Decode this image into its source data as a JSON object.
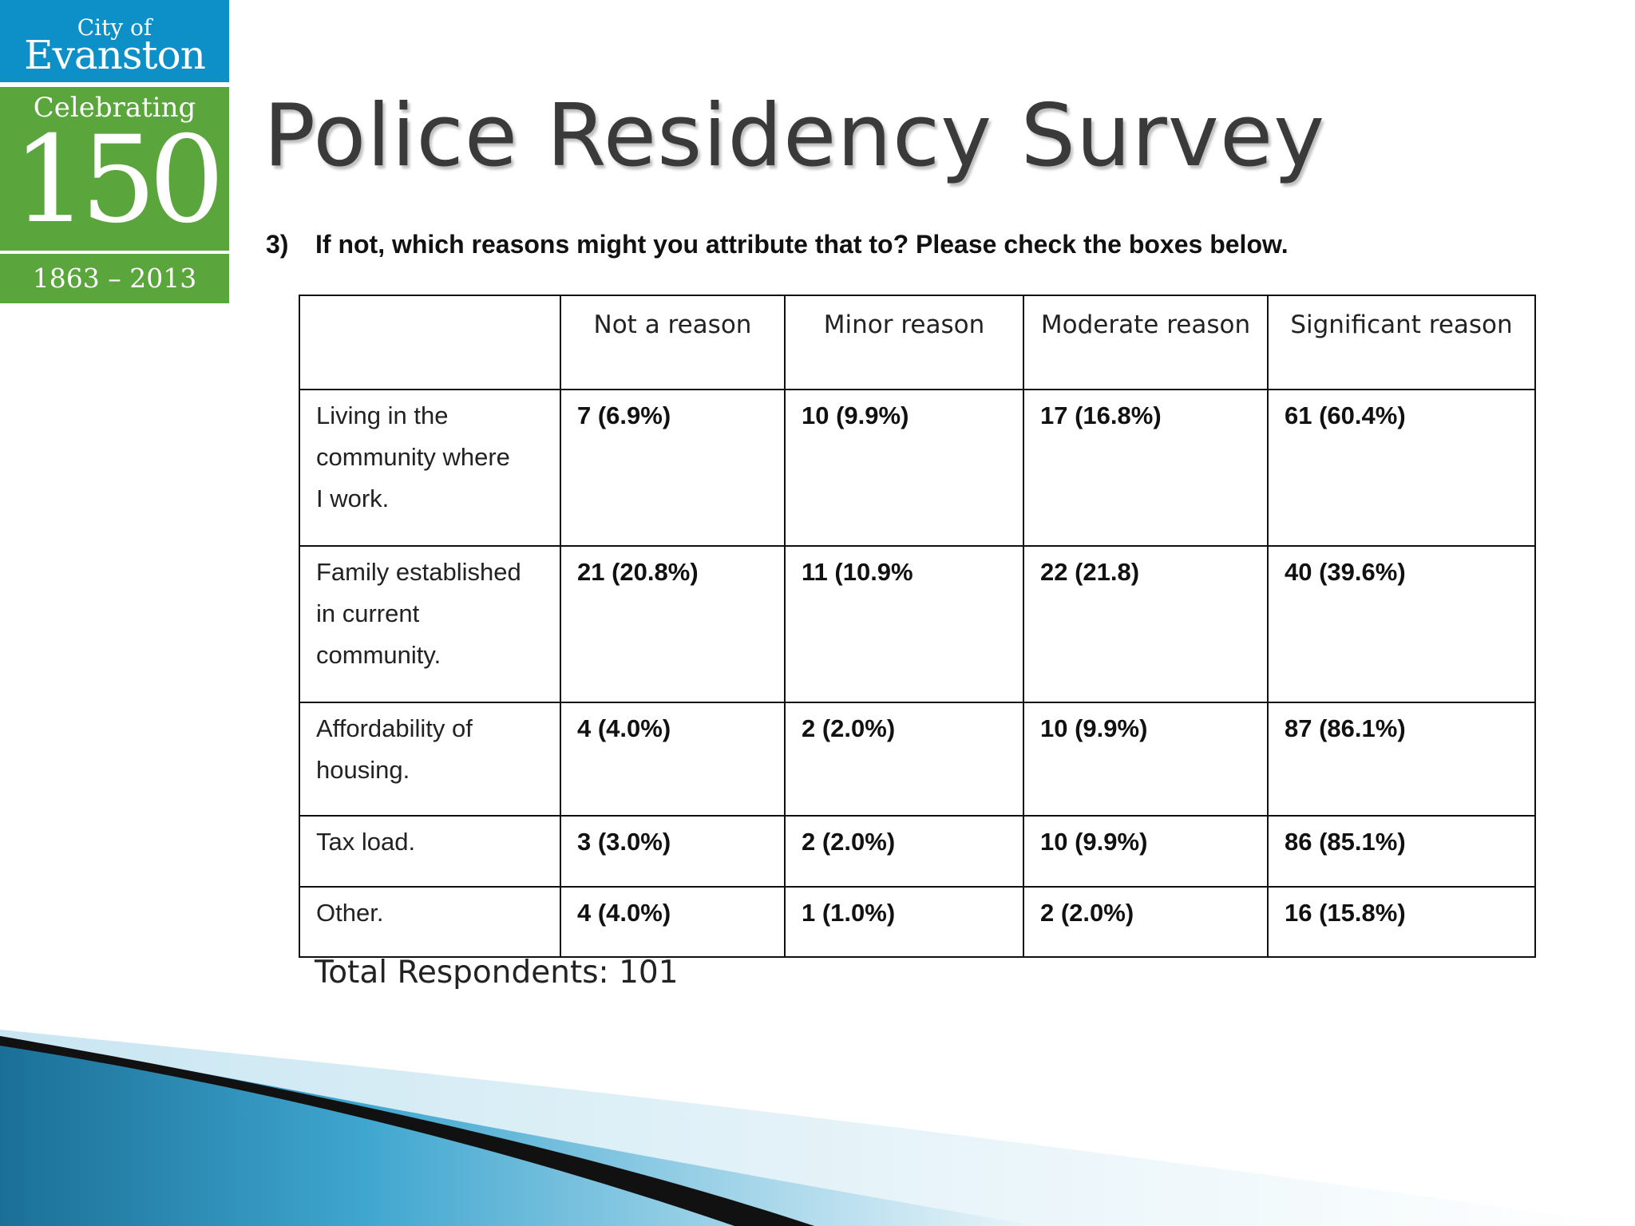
{
  "logo": {
    "city_of": "City of",
    "city_name": "Evanston",
    "celebrating": "Celebrating",
    "number": "150",
    "years": "1863 – 2013",
    "colors": {
      "top": "#0d8fc7",
      "bottom": "#5aa53c"
    }
  },
  "title": "Police Residency Survey",
  "question": {
    "number": "3)",
    "text": "If not, which reasons might you attribute that to? Please check the boxes below."
  },
  "table": {
    "headers": [
      "",
      "Not a reason",
      "Minor reason",
      "Moderate reason",
      "Significant reason"
    ],
    "rows": [
      {
        "label": [
          "Living in the",
          "community where",
          "I work."
        ],
        "values": [
          "7 (6.9%)",
          "10 (9.9%)",
          "17 (16.8%)",
          "61 (60.4%)"
        ]
      },
      {
        "label": [
          "Family established",
          "in current",
          "community."
        ],
        "values": [
          "21 (20.8%)",
          "11 (10.9%",
          "22 (21.8)",
          "40 (39.6%)"
        ]
      },
      {
        "label": [
          "Affordability of",
          "housing."
        ],
        "values": [
          "4 (4.0%)",
          "2 (2.0%)",
          "10 (9.9%)",
          "87 (86.1%)"
        ]
      },
      {
        "label": [
          "Tax load."
        ],
        "values": [
          "3 (3.0%)",
          "2 (2.0%)",
          "10 (9.9%)",
          "86 (85.1%)"
        ]
      },
      {
        "label": [
          "Other."
        ],
        "values": [
          "4 (4.0%)",
          "1 (1.0%)",
          "2 (2.0%)",
          "16 (15.8%)"
        ]
      }
    ]
  },
  "total": "Total Respondents:  101"
}
